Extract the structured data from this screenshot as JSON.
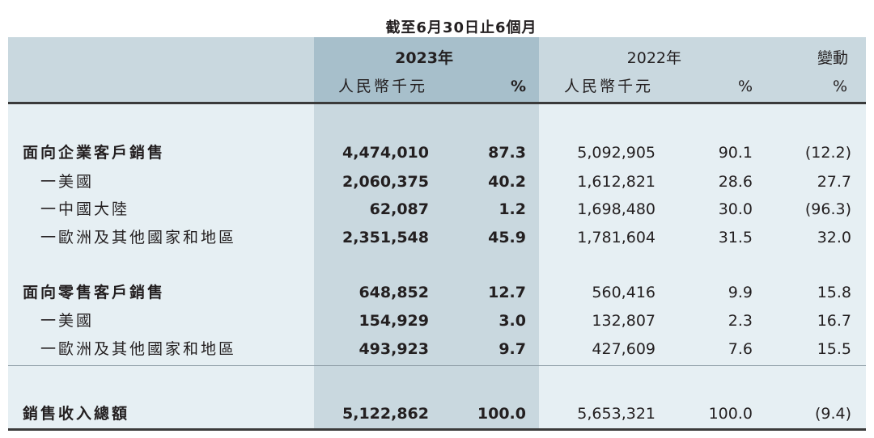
{
  "header": {
    "period": "截至6月30日止6個月",
    "year_2023": "2023年",
    "year_2022": "2022年",
    "change": "變動",
    "unit_2023": "人民幣千元",
    "pct_2023": "%",
    "unit_2022": "人民幣千元",
    "pct_2022": "%",
    "pct_change": "%"
  },
  "rows": [
    {
      "label": "面向企業客戶銷售",
      "v2023": "4,474,010",
      "p2023": "87.3",
      "v2022": "5,092,905",
      "p2022": "90.1",
      "chg": "(12.2)"
    },
    {
      "label": "一美國",
      "v2023": "2,060,375",
      "p2023": "40.2",
      "v2022": "1,612,821",
      "p2022": "28.6",
      "chg": "27.7"
    },
    {
      "label": "一中國大陸",
      "v2023": "62,087",
      "p2023": "1.2",
      "v2022": "1,698,480",
      "p2022": "30.0",
      "chg": "(96.3)"
    },
    {
      "label": "一歐洲及其他國家和地區",
      "v2023": "2,351,548",
      "p2023": "45.9",
      "v2022": "1,781,604",
      "p2022": "31.5",
      "chg": "32.0"
    },
    {
      "label": "面向零售客戶銷售",
      "v2023": "648,852",
      "p2023": "12.7",
      "v2022": "560,416",
      "p2022": "9.9",
      "chg": "15.8"
    },
    {
      "label": "一美國",
      "v2023": "154,929",
      "p2023": "3.0",
      "v2022": "132,807",
      "p2022": "2.3",
      "chg": "16.7"
    },
    {
      "label": "一歐洲及其他國家和地區",
      "v2023": "493,923",
      "p2023": "9.7",
      "v2022": "427,609",
      "p2022": "7.6",
      "chg": "15.5"
    },
    {
      "label": "銷售收入總額",
      "v2023": "5,122,862",
      "p2023": "100.0",
      "v2022": "5,653,321",
      "p2022": "100.0",
      "chg": "(9.4)"
    }
  ]
}
